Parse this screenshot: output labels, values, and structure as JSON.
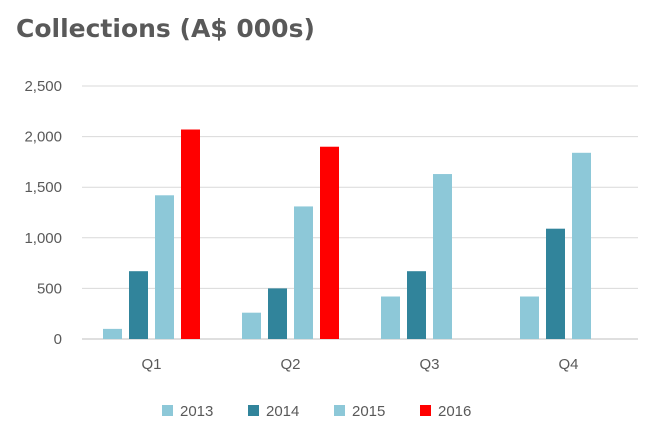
{
  "chart_data": {
    "type": "bar",
    "title": "Collections (A$ 000s)",
    "xlabel": "",
    "ylabel": "",
    "categories": [
      "Q1",
      "Q2",
      "Q3",
      "Q4"
    ],
    "ylim": [
      0,
      2500
    ],
    "yticks": [
      0,
      500,
      1000,
      1500,
      2000,
      2500
    ],
    "ytick_labels": [
      "0",
      "500",
      "1,000",
      "1,500",
      "2,000",
      "2,500"
    ],
    "grid": true,
    "legend_position": "bottom",
    "series": [
      {
        "name": "2013",
        "color": "#8dc8d8",
        "values": [
          100,
          260,
          420,
          420
        ]
      },
      {
        "name": "2014",
        "color": "#31849b",
        "values": [
          670,
          500,
          670,
          1090
        ]
      },
      {
        "name": "2015",
        "color": "#8dc8d8",
        "values": [
          1420,
          1310,
          1630,
          1840
        ]
      },
      {
        "name": "2016",
        "color": "#ff0000",
        "values": [
          2070,
          1900,
          null,
          null
        ]
      }
    ]
  }
}
